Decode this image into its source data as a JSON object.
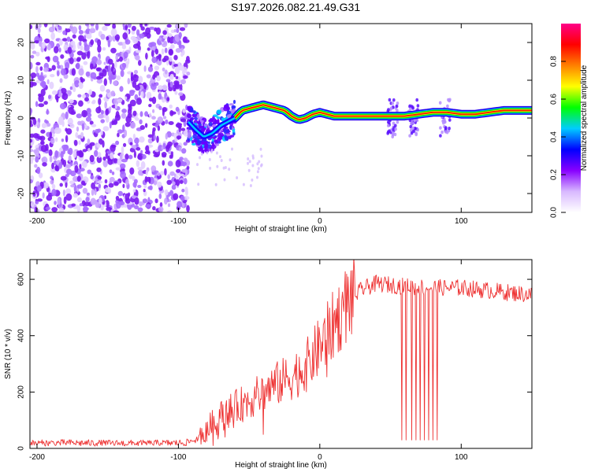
{
  "title": "S197.2026.082.21.49.G31",
  "chart_data": [
    {
      "type": "heatmap",
      "title": "",
      "xlabel": "Height of straight line (km)",
      "ylabel": "Frequency (Hz)",
      "xlim": [
        -205,
        150
      ],
      "ylim": [
        -25,
        25
      ],
      "xticks": [
        -200,
        -100,
        0,
        100
      ],
      "yticks": [
        -20,
        -10,
        0,
        10,
        20
      ],
      "colorbar": {
        "label": "Normalized spectral amplitude",
        "range": [
          0,
          1
        ],
        "ticks": [
          "0.0",
          "0.2",
          "0.4",
          "0.6",
          "0.8"
        ],
        "colormap": [
          "#ffffff",
          "#d8b8ff",
          "#8800ff",
          "#0000ff",
          "#00ccff",
          "#00ff00",
          "#ffff00",
          "#ff8000",
          "#ff0000",
          "#ff0088"
        ]
      },
      "regions": [
        {
          "name": "noise",
          "x": [
            -205,
            -93
          ],
          "freq": [
            -25,
            25
          ],
          "amplitude": [
            0.05,
            0.2
          ]
        },
        {
          "name": "onset",
          "x": [
            -93,
            -60
          ],
          "freq": [
            -8,
            2
          ],
          "amplitude": [
            0.2,
            0.5
          ]
        },
        {
          "name": "signal ridge",
          "x": [
            -60,
            150
          ],
          "amplitude": [
            0.6,
            1.0
          ]
        }
      ],
      "ridge": {
        "x": [
          -93,
          -88,
          -82,
          -76,
          -70,
          -65,
          -60,
          -55,
          -50,
          -45,
          -40,
          -35,
          -30,
          -25,
          -20,
          -15,
          -10,
          -5,
          0,
          5,
          10,
          20,
          30,
          40,
          50,
          60,
          70,
          80,
          90,
          100,
          110,
          120,
          130,
          140,
          150
        ],
        "freq": [
          -1,
          -3,
          -5,
          -4,
          -2,
          -1,
          0,
          2,
          2.5,
          3,
          3.5,
          3,
          2.5,
          2,
          0.5,
          -0.5,
          0,
          1,
          1.5,
          1,
          0.5,
          0.5,
          0.5,
          0.5,
          0.5,
          0.5,
          1,
          1.5,
          1.5,
          1,
          1,
          1.5,
          2,
          2,
          2
        ]
      }
    },
    {
      "type": "line",
      "title": "",
      "xlabel": "Height of straight line (km)",
      "ylabel": "SNR (10 * v/v)",
      "xlim": [
        -205,
        150
      ],
      "ylim": [
        0,
        670
      ],
      "xticks": [
        -200,
        -100,
        0,
        100
      ],
      "yticks": [
        0,
        200,
        400,
        600
      ],
      "color": "#ee3333",
      "envelope": {
        "x": [
          -205,
          -180,
          -150,
          -120,
          -95,
          -85,
          -80,
          -70,
          -60,
          -50,
          -40,
          -30,
          -20,
          -10,
          0,
          10,
          20,
          30,
          40,
          50,
          60,
          80,
          100,
          120,
          150
        ],
        "y": [
          18,
          20,
          18,
          18,
          20,
          35,
          70,
          115,
          145,
          170,
          200,
          230,
          255,
          290,
          360,
          440,
          520,
          565,
          585,
          580,
          575,
          570,
          570,
          560,
          545
        ]
      },
      "dropouts": [
        58,
        61,
        65,
        68,
        71,
        74,
        77,
        80,
        83
      ]
    }
  ]
}
